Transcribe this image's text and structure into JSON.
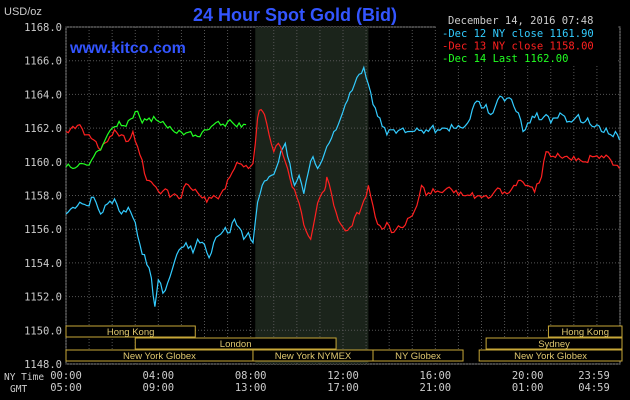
{
  "chart_data": {
    "type": "line",
    "title": "24 Hour Spot Gold (Bid)",
    "unit_label": "USD/oz",
    "website": "www.kitco.com",
    "datetime": "December 14, 2016 07:48",
    "ylim": [
      1148.0,
      1168.0
    ],
    "y_ticks": [
      1148.0,
      1150.0,
      1152.0,
      1154.0,
      1156.0,
      1158.0,
      1160.0,
      1162.0,
      1164.0,
      1166.0,
      1168.0
    ],
    "y_tick_labels": [
      "1148.0",
      "1150.0",
      "1152.0",
      "1154.0",
      "1156.0",
      "1158.0",
      "1160.0",
      "1162.0",
      "1164.0",
      "1166.0",
      "1168.0"
    ],
    "xlim": [
      0,
      24
    ],
    "x_ticks": [
      0,
      4,
      8,
      12,
      16,
      20,
      24
    ],
    "x_row_label_ny": "NY Time",
    "x_row_label_gmt": "GMT",
    "x_tick_labels_ny": [
      "00:00",
      "04:00",
      "08:00",
      "12:00",
      "16:00",
      "20:00",
      "23:59"
    ],
    "x_tick_labels_gmt": [
      "05:00",
      "09:00",
      "13:00",
      "17:00",
      "21:00",
      "01:00",
      "04:59"
    ],
    "shaded_region": [
      8.2,
      13.1
    ],
    "grid": true,
    "legend_position": "top-right",
    "series": [
      {
        "name": "Dec 12 NY close 1161.90",
        "color": "#33ccff",
        "points": [
          [
            0,
            1156.9
          ],
          [
            0.3,
            1157.3
          ],
          [
            0.6,
            1157.6
          ],
          [
            0.9,
            1157.4
          ],
          [
            1.2,
            1157.9
          ],
          [
            1.5,
            1156.9
          ],
          [
            1.8,
            1157.5
          ],
          [
            2.1,
            1157.8
          ],
          [
            2.4,
            1156.9
          ],
          [
            2.7,
            1157.3
          ],
          [
            3.0,
            1156.4
          ],
          [
            3.2,
            1155.1
          ],
          [
            3.5,
            1153.9
          ],
          [
            3.7,
            1153.1
          ],
          [
            3.85,
            1151.4
          ],
          [
            4.0,
            1153.0
          ],
          [
            4.2,
            1152.2
          ],
          [
            4.4,
            1152.8
          ],
          [
            4.6,
            1153.6
          ],
          [
            4.8,
            1154.5
          ],
          [
            5.0,
            1154.9
          ],
          [
            5.2,
            1155.2
          ],
          [
            5.5,
            1154.6
          ],
          [
            5.7,
            1155.4
          ],
          [
            6.0,
            1155.1
          ],
          [
            6.2,
            1154.3
          ],
          [
            6.4,
            1155.2
          ],
          [
            6.6,
            1155.6
          ],
          [
            6.9,
            1156.1
          ],
          [
            7.1,
            1155.8
          ],
          [
            7.3,
            1156.6
          ],
          [
            7.5,
            1156.1
          ],
          [
            7.7,
            1155.4
          ],
          [
            7.9,
            1155.8
          ],
          [
            8.1,
            1155.2
          ],
          [
            8.3,
            1157.6
          ],
          [
            8.5,
            1158.6
          ],
          [
            8.7,
            1158.9
          ],
          [
            8.9,
            1159.2
          ],
          [
            9.1,
            1159.6
          ],
          [
            9.3,
            1160.6
          ],
          [
            9.5,
            1161.1
          ],
          [
            9.7,
            1159.9
          ],
          [
            9.9,
            1158.6
          ],
          [
            10.1,
            1159.2
          ],
          [
            10.3,
            1158.1
          ],
          [
            10.5,
            1159.4
          ],
          [
            10.7,
            1160.3
          ],
          [
            10.9,
            1159.6
          ],
          [
            11.1,
            1160.1
          ],
          [
            11.3,
            1160.9
          ],
          [
            11.5,
            1161.4
          ],
          [
            11.7,
            1161.9
          ],
          [
            11.9,
            1162.6
          ],
          [
            12.1,
            1163.4
          ],
          [
            12.3,
            1164.1
          ],
          [
            12.5,
            1164.6
          ],
          [
            12.7,
            1165.2
          ],
          [
            12.9,
            1165.6
          ],
          [
            13.1,
            1164.6
          ],
          [
            13.3,
            1163.4
          ],
          [
            13.5,
            1162.7
          ],
          [
            13.7,
            1162.1
          ],
          [
            13.9,
            1161.6
          ],
          [
            14.1,
            1161.9
          ],
          [
            14.3,
            1161.7
          ],
          [
            14.6,
            1162.0
          ],
          [
            14.9,
            1161.8
          ],
          [
            15.2,
            1162.0
          ],
          [
            15.5,
            1161.7
          ],
          [
            15.8,
            1162.0
          ],
          [
            16.1,
            1161.9
          ],
          [
            16.4,
            1162.0
          ],
          [
            16.8,
            1162.0
          ],
          [
            17.2,
            1162.0
          ],
          [
            17.4,
            1162.3
          ],
          [
            17.6,
            1163.1
          ],
          [
            17.8,
            1163.6
          ],
          [
            18.0,
            1163.2
          ],
          [
            18.2,
            1163.4
          ],
          [
            18.4,
            1162.8
          ],
          [
            18.6,
            1163.3
          ],
          [
            18.8,
            1163.9
          ],
          [
            19.0,
            1163.6
          ],
          [
            19.2,
            1163.8
          ],
          [
            19.4,
            1163.3
          ],
          [
            19.6,
            1162.9
          ],
          [
            19.8,
            1161.8
          ],
          [
            20.0,
            1162.3
          ],
          [
            20.2,
            1162.7
          ],
          [
            20.4,
            1162.9
          ],
          [
            20.6,
            1162.5
          ],
          [
            20.8,
            1162.8
          ],
          [
            21.0,
            1162.3
          ],
          [
            21.2,
            1162.6
          ],
          [
            21.4,
            1162.9
          ],
          [
            21.6,
            1162.7
          ],
          [
            21.8,
            1162.4
          ],
          [
            22.0,
            1162.5
          ],
          [
            22.2,
            1162.8
          ],
          [
            22.4,
            1162.3
          ],
          [
            22.6,
            1162.6
          ],
          [
            22.8,
            1162.1
          ],
          [
            23.0,
            1162.2
          ],
          [
            23.2,
            1161.8
          ],
          [
            23.4,
            1162.0
          ],
          [
            23.6,
            1161.6
          ],
          [
            23.8,
            1161.8
          ],
          [
            23.98,
            1161.3
          ]
        ]
      },
      {
        "name": "Dec 13 NY close 1158.00",
        "color": "#ff2020",
        "points": [
          [
            0,
            1161.8
          ],
          [
            0.3,
            1162.1
          ],
          [
            0.6,
            1162.2
          ],
          [
            0.9,
            1161.6
          ],
          [
            1.2,
            1161.3
          ],
          [
            1.5,
            1160.7
          ],
          [
            1.8,
            1161.2
          ],
          [
            2.1,
            1161.9
          ],
          [
            2.4,
            1161.6
          ],
          [
            2.6,
            1161.2
          ],
          [
            2.9,
            1161.8
          ],
          [
            3.1,
            1160.9
          ],
          [
            3.3,
            1160.1
          ],
          [
            3.5,
            1158.9
          ],
          [
            3.7,
            1158.8
          ],
          [
            3.9,
            1158.5
          ],
          [
            4.1,
            1158.1
          ],
          [
            4.3,
            1158.4
          ],
          [
            4.5,
            1157.9
          ],
          [
            4.7,
            1158.1
          ],
          [
            5.0,
            1157.9
          ],
          [
            5.2,
            1158.7
          ],
          [
            5.5,
            1158.3
          ],
          [
            5.8,
            1158.0
          ],
          [
            6.1,
            1157.6
          ],
          [
            6.4,
            1158.0
          ],
          [
            6.6,
            1157.8
          ],
          [
            6.9,
            1158.4
          ],
          [
            7.1,
            1159.1
          ],
          [
            7.3,
            1159.6
          ],
          [
            7.5,
            1159.9
          ],
          [
            7.7,
            1159.7
          ],
          [
            7.9,
            1159.6
          ],
          [
            8.1,
            1159.9
          ],
          [
            8.3,
            1162.6
          ],
          [
            8.45,
            1163.1
          ],
          [
            8.6,
            1162.8
          ],
          [
            8.8,
            1161.6
          ],
          [
            9.0,
            1160.6
          ],
          [
            9.2,
            1161.1
          ],
          [
            9.4,
            1160.4
          ],
          [
            9.6,
            1159.6
          ],
          [
            9.8,
            1158.5
          ],
          [
            10.0,
            1157.9
          ],
          [
            10.2,
            1157.0
          ],
          [
            10.4,
            1155.9
          ],
          [
            10.6,
            1155.4
          ],
          [
            10.8,
            1156.8
          ],
          [
            11.0,
            1157.9
          ],
          [
            11.2,
            1158.3
          ],
          [
            11.3,
            1159.1
          ],
          [
            11.5,
            1158.1
          ],
          [
            11.7,
            1157.0
          ],
          [
            11.9,
            1156.3
          ],
          [
            12.1,
            1155.9
          ],
          [
            12.3,
            1156.1
          ],
          [
            12.5,
            1156.7
          ],
          [
            12.7,
            1156.9
          ],
          [
            12.9,
            1157.7
          ],
          [
            13.1,
            1158.6
          ],
          [
            13.3,
            1157.4
          ],
          [
            13.5,
            1156.3
          ],
          [
            13.7,
            1156.0
          ],
          [
            13.9,
            1156.4
          ],
          [
            14.1,
            1155.8
          ],
          [
            14.3,
            1156.0
          ],
          [
            14.6,
            1156.1
          ],
          [
            14.9,
            1156.7
          ],
          [
            15.2,
            1157.4
          ],
          [
            15.4,
            1158.6
          ],
          [
            15.6,
            1158.0
          ],
          [
            15.9,
            1158.4
          ],
          [
            16.2,
            1158.2
          ],
          [
            16.6,
            1158.5
          ],
          [
            16.9,
            1158.3
          ],
          [
            17.2,
            1158.0
          ],
          [
            17.5,
            1158.0
          ],
          [
            17.9,
            1158.0
          ],
          [
            18.2,
            1158.0
          ],
          [
            18.5,
            1158.1
          ],
          [
            18.8,
            1158.4
          ],
          [
            19.1,
            1158.1
          ],
          [
            19.4,
            1158.6
          ],
          [
            19.7,
            1158.9
          ],
          [
            20.0,
            1158.6
          ],
          [
            20.3,
            1158.2
          ],
          [
            20.6,
            1159.1
          ],
          [
            20.8,
            1160.6
          ],
          [
            21.0,
            1160.3
          ],
          [
            21.3,
            1160.5
          ],
          [
            21.6,
            1160.3
          ],
          [
            21.9,
            1160.1
          ],
          [
            22.2,
            1160.2
          ],
          [
            22.5,
            1160.0
          ],
          [
            22.8,
            1160.3
          ],
          [
            23.1,
            1160.2
          ],
          [
            23.4,
            1160.4
          ],
          [
            23.6,
            1160.1
          ],
          [
            23.8,
            1159.8
          ],
          [
            23.98,
            1159.6
          ]
        ]
      },
      {
        "name": "Dec 14 Last 1162.00",
        "color": "#22ff22",
        "points": [
          [
            0,
            1159.7
          ],
          [
            0.3,
            1159.6
          ],
          [
            0.6,
            1159.9
          ],
          [
            0.9,
            1159.8
          ],
          [
            1.2,
            1160.3
          ],
          [
            1.5,
            1160.7
          ],
          [
            1.8,
            1161.6
          ],
          [
            2.0,
            1162.0
          ],
          [
            2.3,
            1162.4
          ],
          [
            2.6,
            1162.1
          ],
          [
            2.9,
            1162.6
          ],
          [
            3.1,
            1163.0
          ],
          [
            3.3,
            1162.3
          ],
          [
            3.6,
            1162.6
          ],
          [
            3.9,
            1162.5
          ],
          [
            4.2,
            1162.4
          ],
          [
            4.5,
            1162.1
          ],
          [
            4.8,
            1161.7
          ],
          [
            5.1,
            1161.6
          ],
          [
            5.4,
            1161.8
          ],
          [
            5.7,
            1161.5
          ],
          [
            6.0,
            1161.9
          ],
          [
            6.3,
            1162.1
          ],
          [
            6.6,
            1162.4
          ],
          [
            6.9,
            1162.1
          ],
          [
            7.1,
            1162.5
          ],
          [
            7.3,
            1162.2
          ],
          [
            7.5,
            1162.3
          ],
          [
            7.8,
            1162.2
          ]
        ]
      }
    ],
    "sessions": [
      {
        "label": "Hong Kong",
        "start": 0,
        "end": 5.6,
        "row": 0
      },
      {
        "label": "Hong Kong",
        "start": 20.9,
        "end": 24.2,
        "row": 0
      },
      {
        "label": "London",
        "start": 3.0,
        "end": 11.7,
        "row": 1
      },
      {
        "label": "Sydney",
        "start": 18.2,
        "end": 24.2,
        "row": 1
      },
      {
        "label": "New York Globex",
        "start": 0,
        "end": 8.1,
        "row": 2
      },
      {
        "label": "New York NYMEX",
        "start": 8.1,
        "end": 13.3,
        "row": 2
      },
      {
        "label": "NY Globex",
        "start": 13.3,
        "end": 17.2,
        "row": 2
      },
      {
        "label": "New York Globex",
        "start": 17.9,
        "end": 24.2,
        "row": 2
      }
    ]
  }
}
